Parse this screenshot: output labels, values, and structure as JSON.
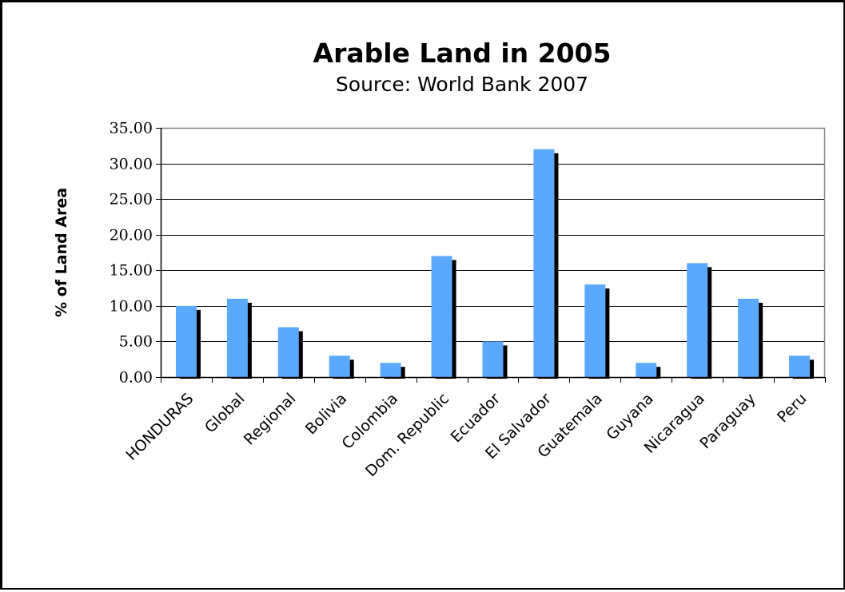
{
  "chart_data": {
    "type": "bar",
    "title": "Arable Land in 2005",
    "subtitle": "Source: World Bank 2007",
    "xlabel": "",
    "ylabel": "% of Land Area",
    "ylim": [
      0,
      35
    ],
    "yticks": [
      "0.00",
      "5.00",
      "10.00",
      "15.00",
      "20.00",
      "25.00",
      "30.00",
      "35.00"
    ],
    "grid": true,
    "categories": [
      "HONDURAS",
      "Global",
      "Regional",
      "Bolivia",
      "Colombia",
      "Dom. Republic",
      "Ecuador",
      "El Salvador",
      "Guatemala",
      "Guyana",
      "Nicaragua",
      "Paraguay",
      "Peru"
    ],
    "values": [
      10,
      11,
      7,
      3,
      2,
      17,
      5,
      32,
      13,
      2,
      16,
      11,
      3
    ],
    "bar_color": "#5aa9ff",
    "shadow_color": "#000000"
  }
}
